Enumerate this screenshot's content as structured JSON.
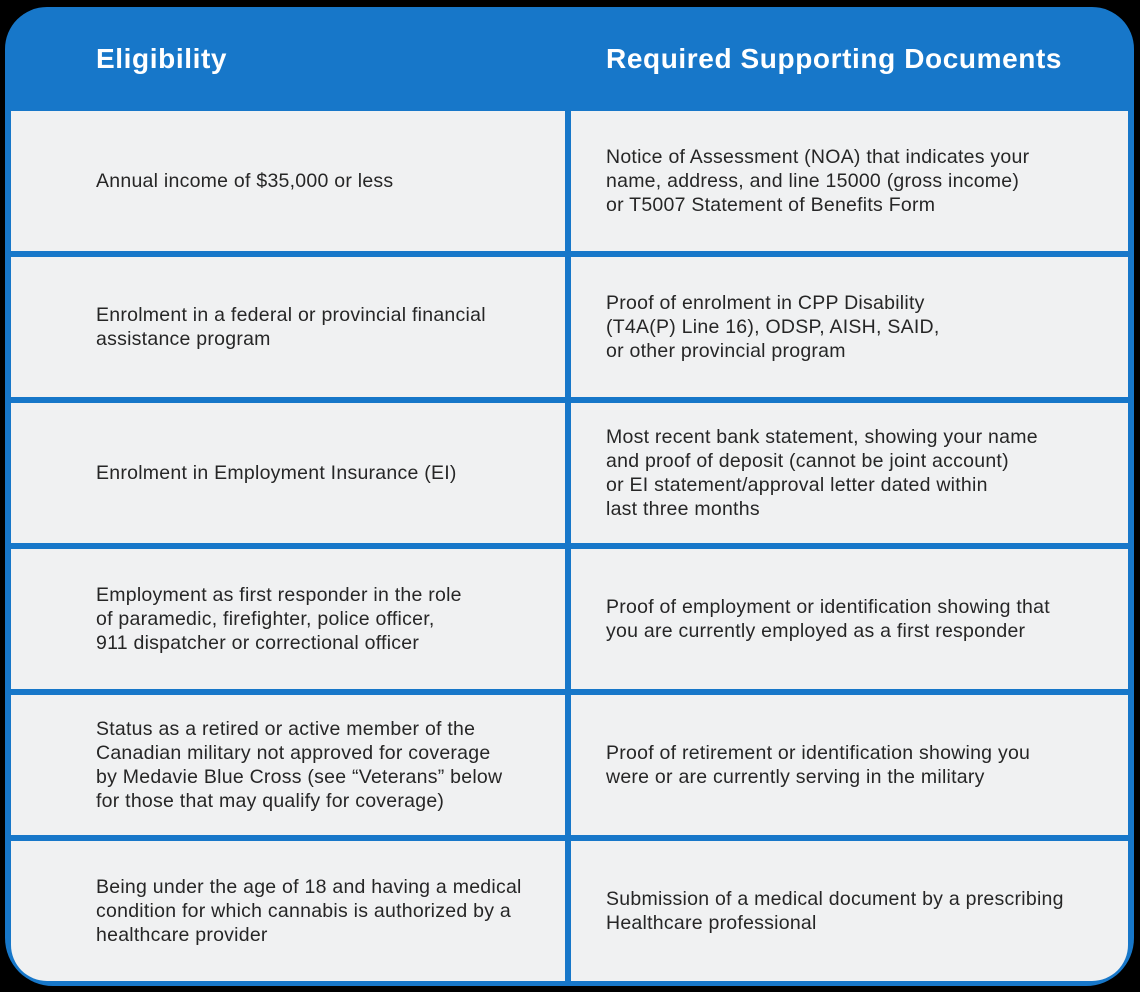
{
  "table": {
    "columns": [
      "Eligibility",
      "Required Supporting Documents"
    ],
    "rows": [
      {
        "eligibility": "Annual income of $35,000 or less",
        "documents": "Notice of Assessment (NOA) that indicates your\nname, address, and line 15000 (gross income)\nor T5007 Statement of Benefits Form"
      },
      {
        "eligibility": "Enrolment in a federal or provincial financial\nassistance program",
        "documents": "Proof of enrolment in CPP Disability\n(T4A(P) Line 16), ODSP, AISH, SAID,\nor other provincial program"
      },
      {
        "eligibility": "Enrolment in Employment Insurance (EI)",
        "documents": "Most recent bank statement, showing your name\nand proof of deposit (cannot be joint account)\nor EI statement/approval letter dated within\nlast three months"
      },
      {
        "eligibility": "Employment as first responder in the role\nof paramedic, firefighter, police officer,\n911 dispatcher or correctional officer",
        "documents": "Proof of employment or identification showing that\nyou are currently employed as a first responder"
      },
      {
        "eligibility": "Status as a retired or active member of the\nCanadian military not approved for coverage\nby Medavie Blue Cross (see “Veterans” below\nfor those that may qualify for coverage)",
        "documents": "Proof of retirement or identification showing you\nwere or are currently serving in the military"
      },
      {
        "eligibility": "Being under the age of 18 and having a medical\ncondition for which cannabis is authorized by a\nhealthcare provider",
        "documents": "Submission of a medical document by a prescribing\nHealthcare professional"
      }
    ]
  },
  "colors": {
    "accent_blue": "#1777c9",
    "cell_gray": "#f0f1f2",
    "text_dark": "#262626",
    "header_text": "#ffffff",
    "frame_black": "#000000"
  }
}
